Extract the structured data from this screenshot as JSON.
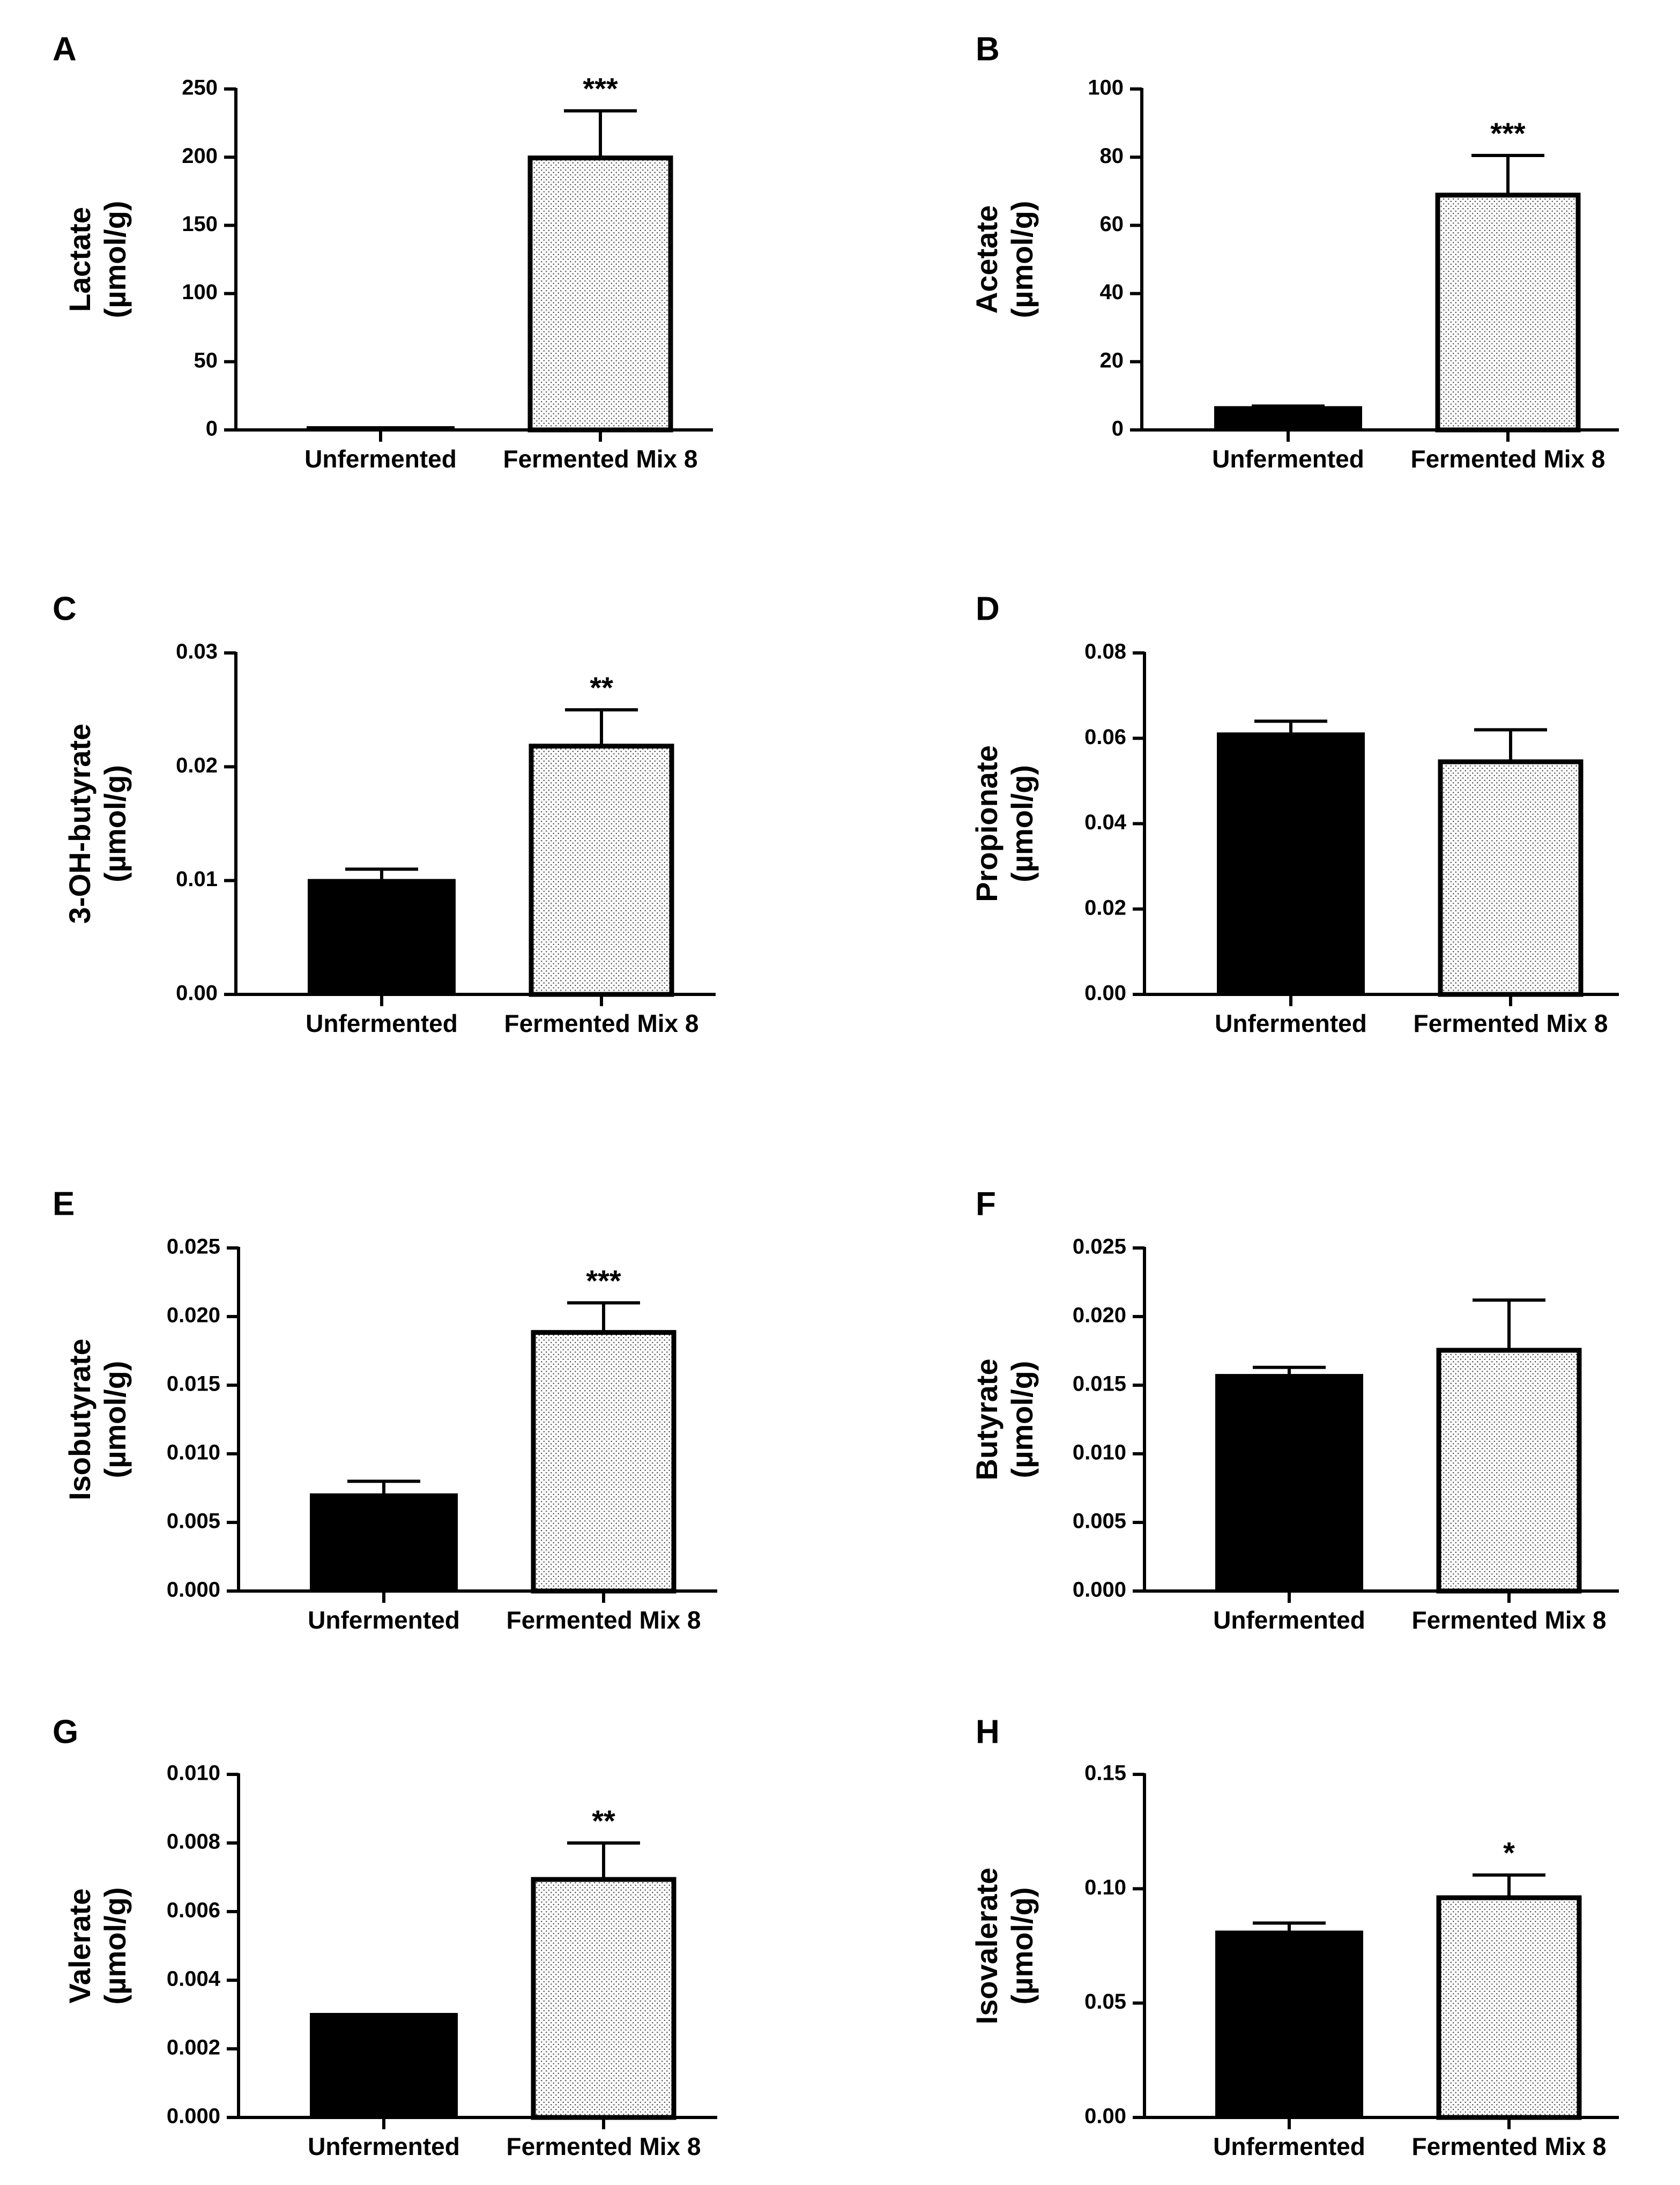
{
  "chart_data": [
    {
      "panel": "A",
      "type": "bar",
      "categories": [
        "Unfermented",
        "Fermented Mix 8"
      ],
      "values": [
        1,
        201
      ],
      "errors": [
        0,
        33
      ],
      "significance": [
        "",
        "***"
      ],
      "ylabel": [
        "Lactate",
        "(µmol/g)"
      ],
      "ylim": [
        0,
        250
      ],
      "ticks": [
        "0",
        "50",
        "100",
        "150",
        "200",
        "250"
      ]
    },
    {
      "panel": "B",
      "type": "bar",
      "categories": [
        "Unfermented",
        "Fermented Mix 8"
      ],
      "values": [
        6.5,
        69.5
      ],
      "errors": [
        0.5,
        11
      ],
      "significance": [
        "",
        "***"
      ],
      "ylabel": [
        "Acetate",
        "(µmol/g)"
      ],
      "ylim": [
        0,
        100
      ],
      "ticks": [
        "0",
        "20",
        "40",
        "60",
        "80",
        "100"
      ]
    },
    {
      "panel": "C",
      "type": "bar",
      "categories": [
        "Unfermented",
        "Fermented Mix 8"
      ],
      "values": [
        0.01,
        0.022
      ],
      "errors": [
        0.001,
        0.003
      ],
      "significance": [
        "",
        "**"
      ],
      "ylabel": [
        "3-OH-butyrate",
        "(µmol/g)"
      ],
      "ylim": [
        0,
        0.03
      ],
      "ticks": [
        "0.00",
        "0.01",
        "0.02",
        "0.03"
      ]
    },
    {
      "panel": "D",
      "type": "bar",
      "categories": [
        "Unfermented",
        "Fermented Mix 8"
      ],
      "values": [
        0.061,
        0.055
      ],
      "errors": [
        0.003,
        0.007
      ],
      "significance": [
        "",
        ""
      ],
      "ylabel": [
        "Propionate",
        "(µmol/g)"
      ],
      "ylim": [
        0,
        0.08
      ],
      "ticks": [
        "0.00",
        "0.02",
        "0.04",
        "0.06",
        "0.08"
      ]
    },
    {
      "panel": "E",
      "type": "bar",
      "categories": [
        "Unfermented",
        "Fermented Mix 8"
      ],
      "values": [
        0.007,
        0.019
      ],
      "errors": [
        0.001,
        0.002
      ],
      "significance": [
        "",
        "***"
      ],
      "ylabel": [
        "Isobutyrate",
        "(µmol/g)"
      ],
      "ylim": [
        0,
        0.025
      ],
      "ticks": [
        "0.000",
        "0.005",
        "0.010",
        "0.015",
        "0.020",
        "0.025"
      ]
    },
    {
      "panel": "F",
      "type": "bar",
      "categories": [
        "Unfermented",
        "Fermented Mix 8"
      ],
      "values": [
        0.0157,
        0.0177
      ],
      "errors": [
        0.0006,
        0.0035
      ],
      "significance": [
        "",
        ""
      ],
      "ylabel": [
        "Butyrate",
        "(µmol/g)"
      ],
      "ylim": [
        0,
        0.025
      ],
      "ticks": [
        "0.000",
        "0.005",
        "0.010",
        "0.015",
        "0.020",
        "0.025"
      ]
    },
    {
      "panel": "G",
      "type": "bar",
      "categories": [
        "Unfermented",
        "Fermented Mix 8"
      ],
      "values": [
        0.003,
        0.007
      ],
      "errors": [
        0,
        0.001
      ],
      "significance": [
        "",
        "**"
      ],
      "ylabel": [
        "Valerate",
        "(µmol/g)"
      ],
      "ylim": [
        0,
        0.01
      ],
      "ticks": [
        "0.000",
        "0.002",
        "0.004",
        "0.006",
        "0.008",
        "0.010"
      ]
    },
    {
      "panel": "H",
      "type": "bar",
      "categories": [
        "Unfermented",
        "Fermented Mix 8"
      ],
      "values": [
        0.081,
        0.097
      ],
      "errors": [
        0.004,
        0.009
      ],
      "significance": [
        "",
        "*"
      ],
      "ylabel": [
        "Isovalerate",
        "(µmol/g)"
      ],
      "ylim": [
        0,
        0.15
      ],
      "ticks": [
        "0.00",
        "0.05",
        "0.10",
        "0.15"
      ]
    }
  ]
}
